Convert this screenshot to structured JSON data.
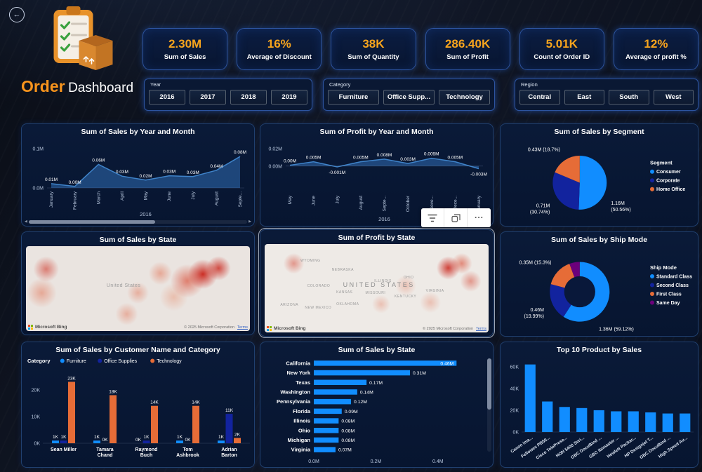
{
  "colors": {
    "accent_orange": "#F7A41D",
    "series_blue": "#118DFF",
    "series_dark_blue": "#12239E",
    "series_orange": "#E66C37",
    "series_purple": "#6B007B",
    "area_blue": "#2E75B6"
  },
  "header": {
    "title_primary": "Order",
    "title_secondary": "Dashboard"
  },
  "kpis": [
    {
      "value": "2.30M",
      "label": "Sum of Sales"
    },
    {
      "value": "16%",
      "label": "Average of Discount"
    },
    {
      "value": "38K",
      "label": "Sum of Quantity"
    },
    {
      "value": "286.40K",
      "label": "Sum of Profit"
    },
    {
      "value": "5.01K",
      "label": "Count of Order ID"
    },
    {
      "value": "12%",
      "label": "Average of profit %"
    }
  ],
  "slicers": [
    {
      "label": "Year",
      "options": [
        "2016",
        "2017",
        "2018",
        "2019"
      ]
    },
    {
      "label": "Category",
      "options": [
        "Furniture",
        "Office Supp...",
        "Technology"
      ]
    },
    {
      "label": "Region",
      "options": [
        "Central",
        "East",
        "South",
        "West"
      ]
    }
  ],
  "visual_toolbar": {
    "more_options": "..."
  },
  "chart_data": [
    {
      "id": "sales-by-year-month",
      "type": "area",
      "title": "Sum of Sales by Year and Month",
      "x": [
        "January",
        "February",
        "March",
        "April",
        "May",
        "June",
        "July",
        "August",
        "Septe..."
      ],
      "values": [
        0.011,
        0.004,
        0.06,
        0.03,
        0.02,
        0.031,
        0.029,
        0.045,
        0.08
      ],
      "labels": [
        "0.01M",
        "0.00M",
        "0.06M",
        "0.03M",
        "0.02M",
        "0.03M",
        "0.03M",
        "0.04M",
        "0.08M"
      ],
      "ylim": [
        0,
        0.1
      ],
      "yticks": [
        {
          "v": 0,
          "label": "0.0M"
        },
        {
          "v": 0.1,
          "label": "0.1M"
        }
      ],
      "year_label": "2016",
      "has_hscrollbar": true
    },
    {
      "id": "profit-by-year-month",
      "type": "area",
      "title": "Sum of Profit by Year and Month",
      "x": [
        "May",
        "June",
        "July",
        "August",
        "Septe...",
        "October",
        "Nove...",
        "Dece...",
        "January"
      ],
      "values": [
        0.001,
        0.005,
        -0.001,
        0.005,
        0.008,
        0.003,
        0.009,
        0.005,
        -0.003
      ],
      "labels": [
        "0.00M",
        "0.005M",
        "-0.001M",
        "0.005M",
        "0.008M",
        "0.003M",
        "0.009M",
        "0.005M",
        "-0.003M"
      ],
      "ylim": [
        -0.03,
        0.02
      ],
      "yticks": [
        {
          "v": 0,
          "label": "0.00M"
        },
        {
          "v": 0.02,
          "label": "0.02M"
        }
      ],
      "year_label": "2016"
    },
    {
      "id": "sales-by-segment",
      "type": "pie",
      "title": "Sum of Sales by Segment",
      "legend_title": "Segment",
      "slices": [
        {
          "name": "Consumer",
          "value": "1.16M",
          "pct": 50.56,
          "color": "#118DFF",
          "label_angle": 118,
          "label_lines": [
            "1.16M",
            "(50.56%)"
          ]
        },
        {
          "name": "Corporate",
          "value": "0.71M",
          "pct": 30.74,
          "color": "#12239E",
          "label_lines": [
            "0.71M",
            "(30.74%)"
          ]
        },
        {
          "name": "Home Office",
          "value": "0.43M",
          "pct": 18.7,
          "color": "#E66C37",
          "label_lines": [
            "0.43M (18.7%)"
          ]
        }
      ]
    },
    {
      "id": "sales-by-state-map",
      "type": "map",
      "title": "Sum of Sales by State",
      "map_class": "heat-sales",
      "labels": [
        {
          "text": "United States",
          "x": 36,
          "y": 44,
          "size": 7
        }
      ],
      "bing_label": "Microsoft Bing",
      "copyright": "© 2025 Microsoft Corporation",
      "terms": "Terms"
    },
    {
      "id": "profit-by-state-map",
      "type": "map",
      "title": "Sum of Profit by State",
      "selected": true,
      "map_class": "heat-profit",
      "labels": [
        {
          "text": "UNITED STATES",
          "x": 35,
          "y": 42,
          "size": 9,
          "spaced": true
        },
        {
          "text": "WYOMING",
          "x": 16,
          "y": 17,
          "size": 5
        },
        {
          "text": "NEBRASKA",
          "x": 30,
          "y": 27,
          "size": 5
        },
        {
          "text": "COLORADO",
          "x": 19,
          "y": 45,
          "size": 5
        },
        {
          "text": "KANSAS",
          "x": 32,
          "y": 52,
          "size": 5
        },
        {
          "text": "MISSOURI",
          "x": 45,
          "y": 53,
          "size": 5
        },
        {
          "text": "ILLINOIS",
          "x": 49,
          "y": 40,
          "size": 5
        },
        {
          "text": "OHIO",
          "x": 62,
          "y": 36,
          "size": 5
        },
        {
          "text": "KENTUCKY",
          "x": 58,
          "y": 57,
          "size": 5
        },
        {
          "text": "VIRGINIA",
          "x": 72,
          "y": 51,
          "size": 5
        },
        {
          "text": "OKLAHOMA",
          "x": 32,
          "y": 66,
          "size": 5
        },
        {
          "text": "ARIZONA",
          "x": 7,
          "y": 67,
          "size": 5
        },
        {
          "text": "NEW MEXICO",
          "x": 18,
          "y": 70,
          "size": 5
        }
      ],
      "bing_label": "Microsoft Bing",
      "copyright": "© 2025 Microsoft Corporation",
      "terms": "Terms"
    },
    {
      "id": "sales-by-ship-mode",
      "type": "donut",
      "title": "Sum of Sales by Ship Mode",
      "legend_title": "Ship Mode",
      "slices": [
        {
          "name": "Standard Class",
          "value": "1.36M",
          "pct": 59.12,
          "color": "#118DFF",
          "label_angle": 150,
          "label_lines": [
            "1.36M (59.12%)"
          ]
        },
        {
          "name": "Second Class",
          "value": "0.46M",
          "pct": 19.99,
          "color": "#12239E",
          "label_lines": [
            "0.46M",
            "(19.99%)"
          ]
        },
        {
          "name": "First Class",
          "value": "0.35M",
          "pct": 15.3,
          "color": "#E66C37",
          "label_lines": [
            "0.35M (15.3%)"
          ]
        },
        {
          "name": "Same Day",
          "value": "",
          "pct": 5.59,
          "color": "#6B007B",
          "label_lines": []
        }
      ]
    },
    {
      "id": "sales-by-customer-category",
      "type": "grouped-column",
      "title": "Sum of Sales by Customer Name and Category",
      "legend_title": "Category",
      "categories": [
        "Sean Miller",
        "Tamara Chand",
        "Raymond Buch",
        "Tom Ashbrook",
        "Adrian Barton"
      ],
      "series": [
        {
          "name": "Furniture",
          "color": "#118DFF",
          "values": [
            1,
            1,
            0,
            1,
            1
          ],
          "labels": [
            "1K",
            "1K",
            "0K",
            "1K",
            "1K"
          ]
        },
        {
          "name": "Office Supplies",
          "color": "#12239E",
          "values": [
            1,
            0,
            1,
            0,
            11
          ],
          "labels": [
            "1K",
            "0K",
            "1K",
            "0K",
            "11K"
          ]
        },
        {
          "name": "Technology",
          "color": "#E66C37",
          "values": [
            23,
            18,
            14,
            14,
            2
          ],
          "labels": [
            "23K",
            "18K",
            "14K",
            "14K",
            "2K"
          ]
        }
      ],
      "ylim": [
        0,
        26
      ],
      "yticks": [
        {
          "v": 0,
          "label": "0K"
        },
        {
          "v": 10,
          "label": "10K"
        },
        {
          "v": 20,
          "label": "20K"
        }
      ]
    },
    {
      "id": "sales-by-state-bar",
      "type": "bar",
      "title": "Sum of Sales by State",
      "categories": [
        "California",
        "New York",
        "Texas",
        "Washington",
        "Pennsylvania",
        "Florida",
        "Illinois",
        "Ohio",
        "Michigan",
        "Virginia"
      ],
      "values": [
        0.46,
        0.31,
        0.17,
        0.14,
        0.12,
        0.09,
        0.08,
        0.08,
        0.08,
        0.07
      ],
      "labels": [
        "0.46M",
        "0.31M",
        "0.17M",
        "0.14M",
        "0.12M",
        "0.09M",
        "0.08M",
        "0.08M",
        "0.08M",
        "0.07M"
      ],
      "xlim": [
        0,
        0.5
      ],
      "xticks": [
        {
          "v": 0,
          "label": "0.0M"
        },
        {
          "v": 0.2,
          "label": "0.2M"
        },
        {
          "v": 0.4,
          "label": "0.4M"
        }
      ],
      "bar_color": "#118DFF",
      "has_vscrollbar": true
    },
    {
      "id": "top-10-product",
      "type": "column",
      "title": "Top 10 Product by Sales",
      "categories": [
        "Canon ima...",
        "Fellowes PB50...",
        "Cisco TelePrese...",
        "HON 5400 Seri...",
        "GBC DocuBind ...",
        "GBC Ibimaster ...",
        "Hewlett Packar...",
        "HP Designjet T...",
        "GBC DocuBind ...",
        "High Speed Au..."
      ],
      "values": [
        62,
        28,
        23,
        22,
        20,
        19,
        19,
        18,
        17,
        17
      ],
      "ylim": [
        0,
        65
      ],
      "yticks": [
        {
          "v": 0,
          "label": "0K"
        },
        {
          "v": 20,
          "label": "20K"
        },
        {
          "v": 40,
          "label": "40K"
        },
        {
          "v": 60,
          "label": "60K"
        }
      ],
      "bar_color": "#118DFF"
    }
  ]
}
